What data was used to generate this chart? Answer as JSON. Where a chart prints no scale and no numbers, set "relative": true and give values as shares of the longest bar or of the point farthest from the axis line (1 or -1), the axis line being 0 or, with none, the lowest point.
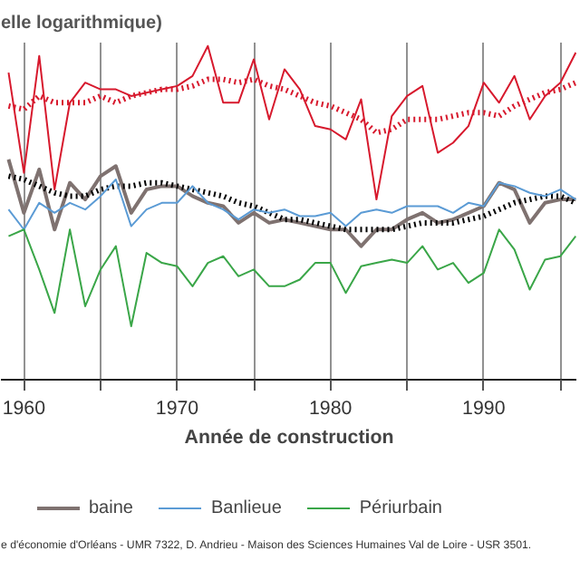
{
  "chart_data": {
    "type": "line",
    "title": "elle logarithmique)",
    "xlabel": "Année de construction",
    "relative": true,
    "x": [
      1959,
      1960,
      1961,
      1962,
      1963,
      1964,
      1965,
      1966,
      1967,
      1968,
      1969,
      1970,
      1971,
      1972,
      1973,
      1974,
      1975,
      1976,
      1977,
      1978,
      1979,
      1980,
      1981,
      1982,
      1983,
      1984,
      1985,
      1986,
      1987,
      1988,
      1989,
      1990,
      1991,
      1992,
      1993,
      1994,
      1995,
      1996
    ],
    "xlim": [
      1958.5,
      1996.1
    ],
    "xticks": [
      1960,
      {
        "value": 1965,
        "label": null
      },
      1970,
      {
        "value": 1975,
        "label": null
      },
      1980,
      {
        "value": 1985,
        "label": null
      },
      1990,
      {
        "value": 1995,
        "label": null
      }
    ],
    "grid": "x",
    "legend": "bottom",
    "tick_labels": "x",
    "series": [
      {
        "color": "#d7192d",
        "line_style": "solid",
        "values": [
          0.92,
          0.62,
          0.97,
          0.57,
          0.83,
          0.89,
          0.87,
          0.87,
          0.85,
          0.86,
          0.87,
          0.88,
          0.91,
          1.0,
          0.83,
          0.83,
          0.96,
          0.78,
          0.93,
          0.87,
          0.76,
          0.75,
          0.72,
          0.84,
          0.54,
          0.79,
          0.85,
          0.88,
          0.68,
          0.71,
          0.76,
          0.89,
          0.83,
          0.91,
          0.78,
          0.85,
          0.89,
          0.98
        ]
      },
      {
        "color": "#d7192d",
        "line_style": "dotted",
        "values": [
          0.82,
          0.81,
          0.85,
          0.83,
          0.83,
          0.83,
          0.85,
          0.83,
          0.85,
          0.86,
          0.87,
          0.87,
          0.88,
          0.9,
          0.9,
          0.89,
          0.9,
          0.88,
          0.87,
          0.85,
          0.83,
          0.82,
          0.8,
          0.78,
          0.74,
          0.75,
          0.78,
          0.78,
          0.78,
          0.79,
          0.8,
          0.8,
          0.79,
          0.82,
          0.84,
          0.86,
          0.87,
          0.89
        ]
      },
      {
        "name": "baine",
        "color": "#7f7270",
        "line_style": "solid",
        "values": [
          0.66,
          0.5,
          0.63,
          0.45,
          0.59,
          0.54,
          0.61,
          0.64,
          0.5,
          0.57,
          0.58,
          0.58,
          0.55,
          0.53,
          0.52,
          0.47,
          0.5,
          0.47,
          0.48,
          0.47,
          0.46,
          0.45,
          0.45,
          0.4,
          0.45,
          0.45,
          0.48,
          0.5,
          0.47,
          0.48,
          0.5,
          0.52,
          0.59,
          0.57,
          0.47,
          0.53,
          0.54,
          0.54
        ]
      },
      {
        "color": "#000000",
        "line_style": "dotted",
        "values": [
          0.61,
          0.6,
          0.58,
          0.56,
          0.55,
          0.55,
          0.57,
          0.58,
          0.58,
          0.59,
          0.59,
          0.58,
          0.57,
          0.56,
          0.55,
          0.53,
          0.52,
          0.5,
          0.48,
          0.48,
          0.47,
          0.46,
          0.45,
          0.45,
          0.45,
          0.45,
          0.46,
          0.47,
          0.47,
          0.47,
          0.48,
          0.49,
          0.51,
          0.53,
          0.54,
          0.55,
          0.55,
          0.53
        ]
      },
      {
        "name": "Banlieue",
        "color": "#5b9bd5",
        "line_style": "solid",
        "values": [
          0.51,
          0.45,
          0.53,
          0.5,
          0.53,
          0.51,
          0.55,
          0.6,
          0.46,
          0.51,
          0.53,
          0.53,
          0.58,
          0.53,
          0.51,
          0.48,
          0.51,
          0.5,
          0.51,
          0.49,
          0.49,
          0.5,
          0.46,
          0.5,
          0.51,
          0.5,
          0.52,
          0.52,
          0.52,
          0.5,
          0.53,
          0.52,
          0.59,
          0.58,
          0.56,
          0.55,
          0.57,
          0.54
        ]
      },
      {
        "name": "Périurbain",
        "color": "#3aa648",
        "line_style": "solid",
        "values": [
          0.43,
          0.45,
          0.33,
          0.2,
          0.45,
          0.22,
          0.33,
          0.4,
          0.16,
          0.38,
          0.35,
          0.34,
          0.28,
          0.35,
          0.37,
          0.31,
          0.33,
          0.28,
          0.28,
          0.3,
          0.35,
          0.35,
          0.26,
          0.34,
          0.35,
          0.36,
          0.35,
          0.4,
          0.33,
          0.35,
          0.29,
          0.32,
          0.45,
          0.39,
          0.27,
          0.36,
          0.37,
          0.43
        ]
      }
    ],
    "annotations": [
      "e d'économie d'Orléans - UMR 7322, D. Andrieu - Maison des Sciences Humaines Val de Loire - USR 3501."
    ]
  }
}
